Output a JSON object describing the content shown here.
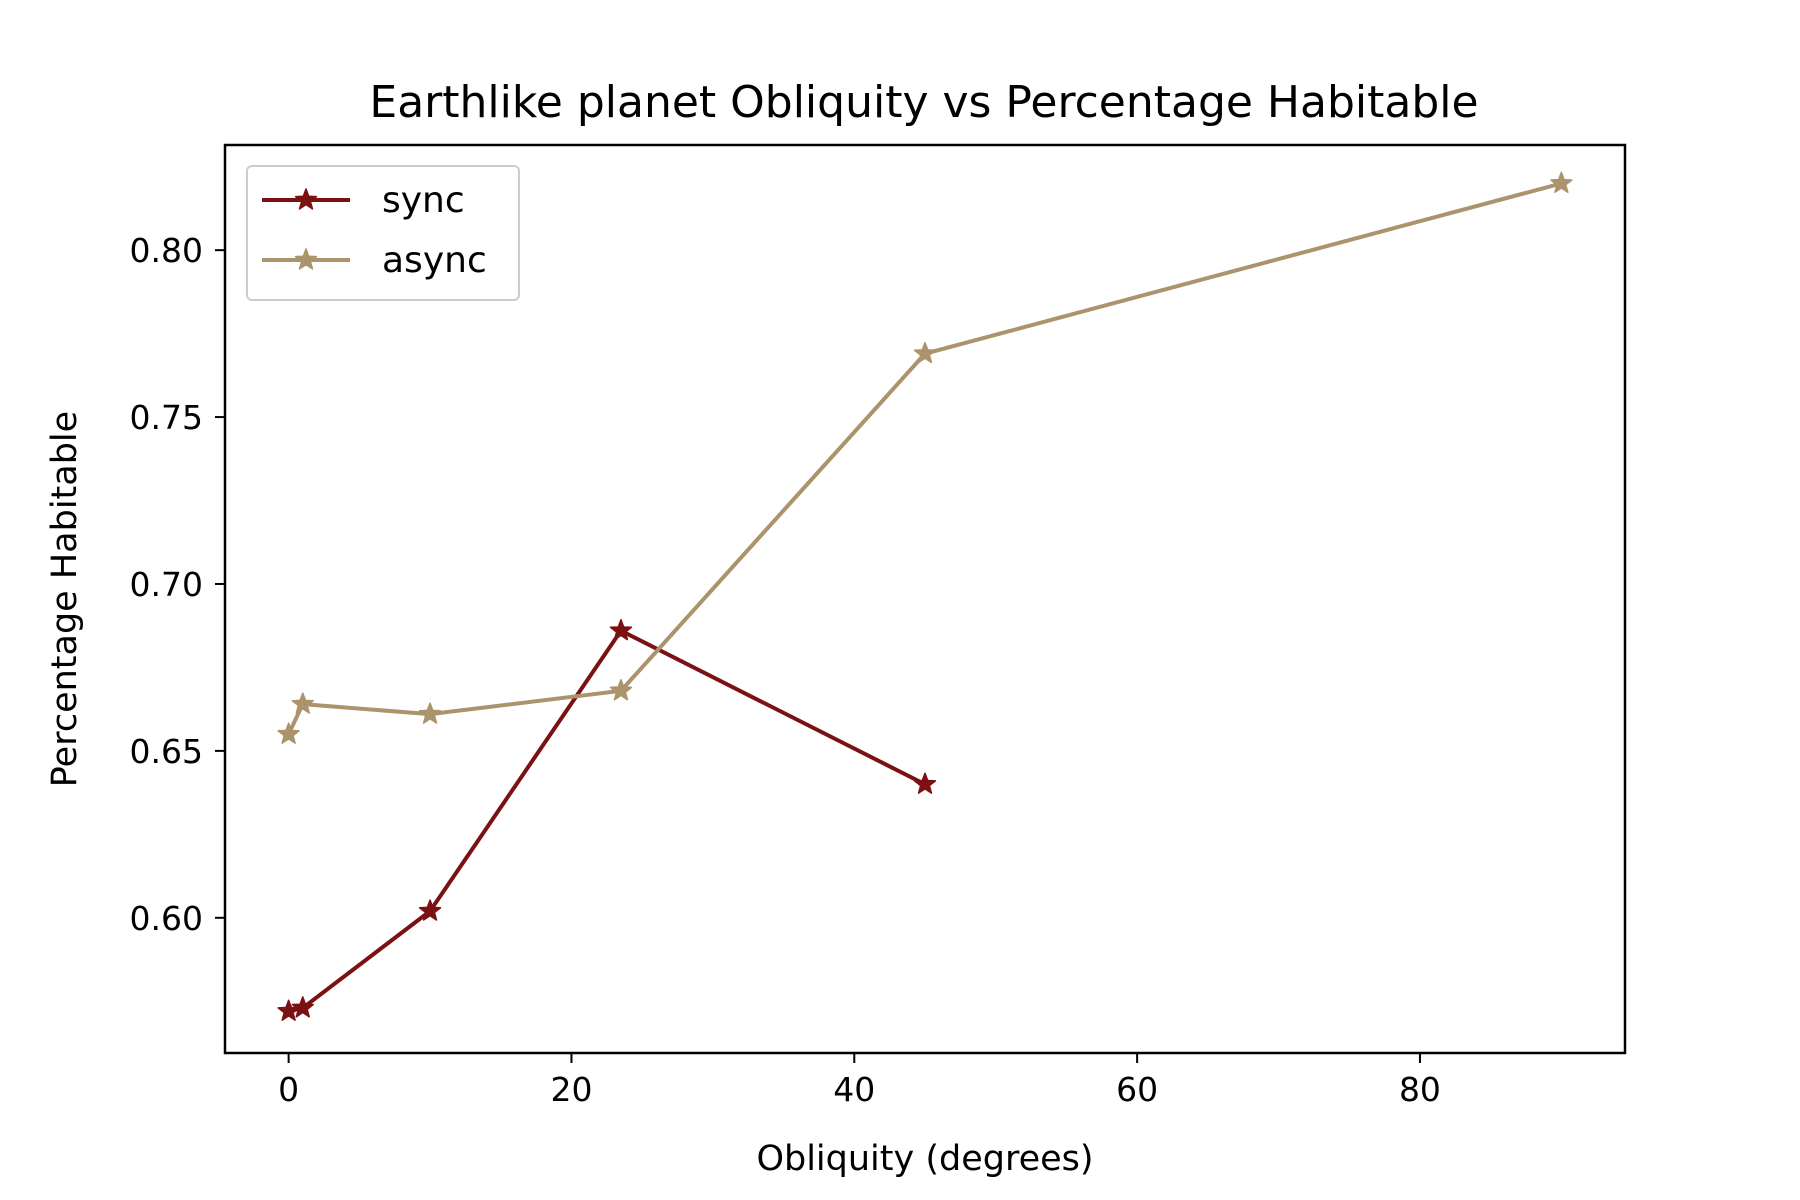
{
  "chart_data": {
    "type": "line",
    "title": "Earthlike planet Obliquity vs Percentage Habitable",
    "xlabel": "Obliquity (degrees)",
    "ylabel": "Percentage Habitable",
    "xlim": [
      -4.5,
      94.5
    ],
    "ylim": [
      0.5595,
      0.8315
    ],
    "xticks": [
      0,
      20,
      40,
      60,
      80
    ],
    "yticks": [
      0.6,
      0.65,
      0.7,
      0.75,
      0.8
    ],
    "xtick_labels": [
      "0",
      "20",
      "40",
      "60",
      "80"
    ],
    "ytick_labels": [
      "0.60",
      "0.65",
      "0.70",
      "0.75",
      "0.80"
    ],
    "grid": false,
    "legend_position": "upper-left",
    "marker": "star",
    "series": [
      {
        "name": "sync",
        "color": "#7b1113",
        "x": [
          0,
          1,
          10,
          23.5,
          45
        ],
        "y": [
          0.572,
          0.573,
          0.602,
          0.686,
          0.64
        ]
      },
      {
        "name": "async",
        "color": "#ab936b",
        "x": [
          0,
          1,
          10,
          23.5,
          45,
          90
        ],
        "y": [
          0.655,
          0.664,
          0.661,
          0.668,
          0.769,
          0.82
        ]
      }
    ]
  }
}
